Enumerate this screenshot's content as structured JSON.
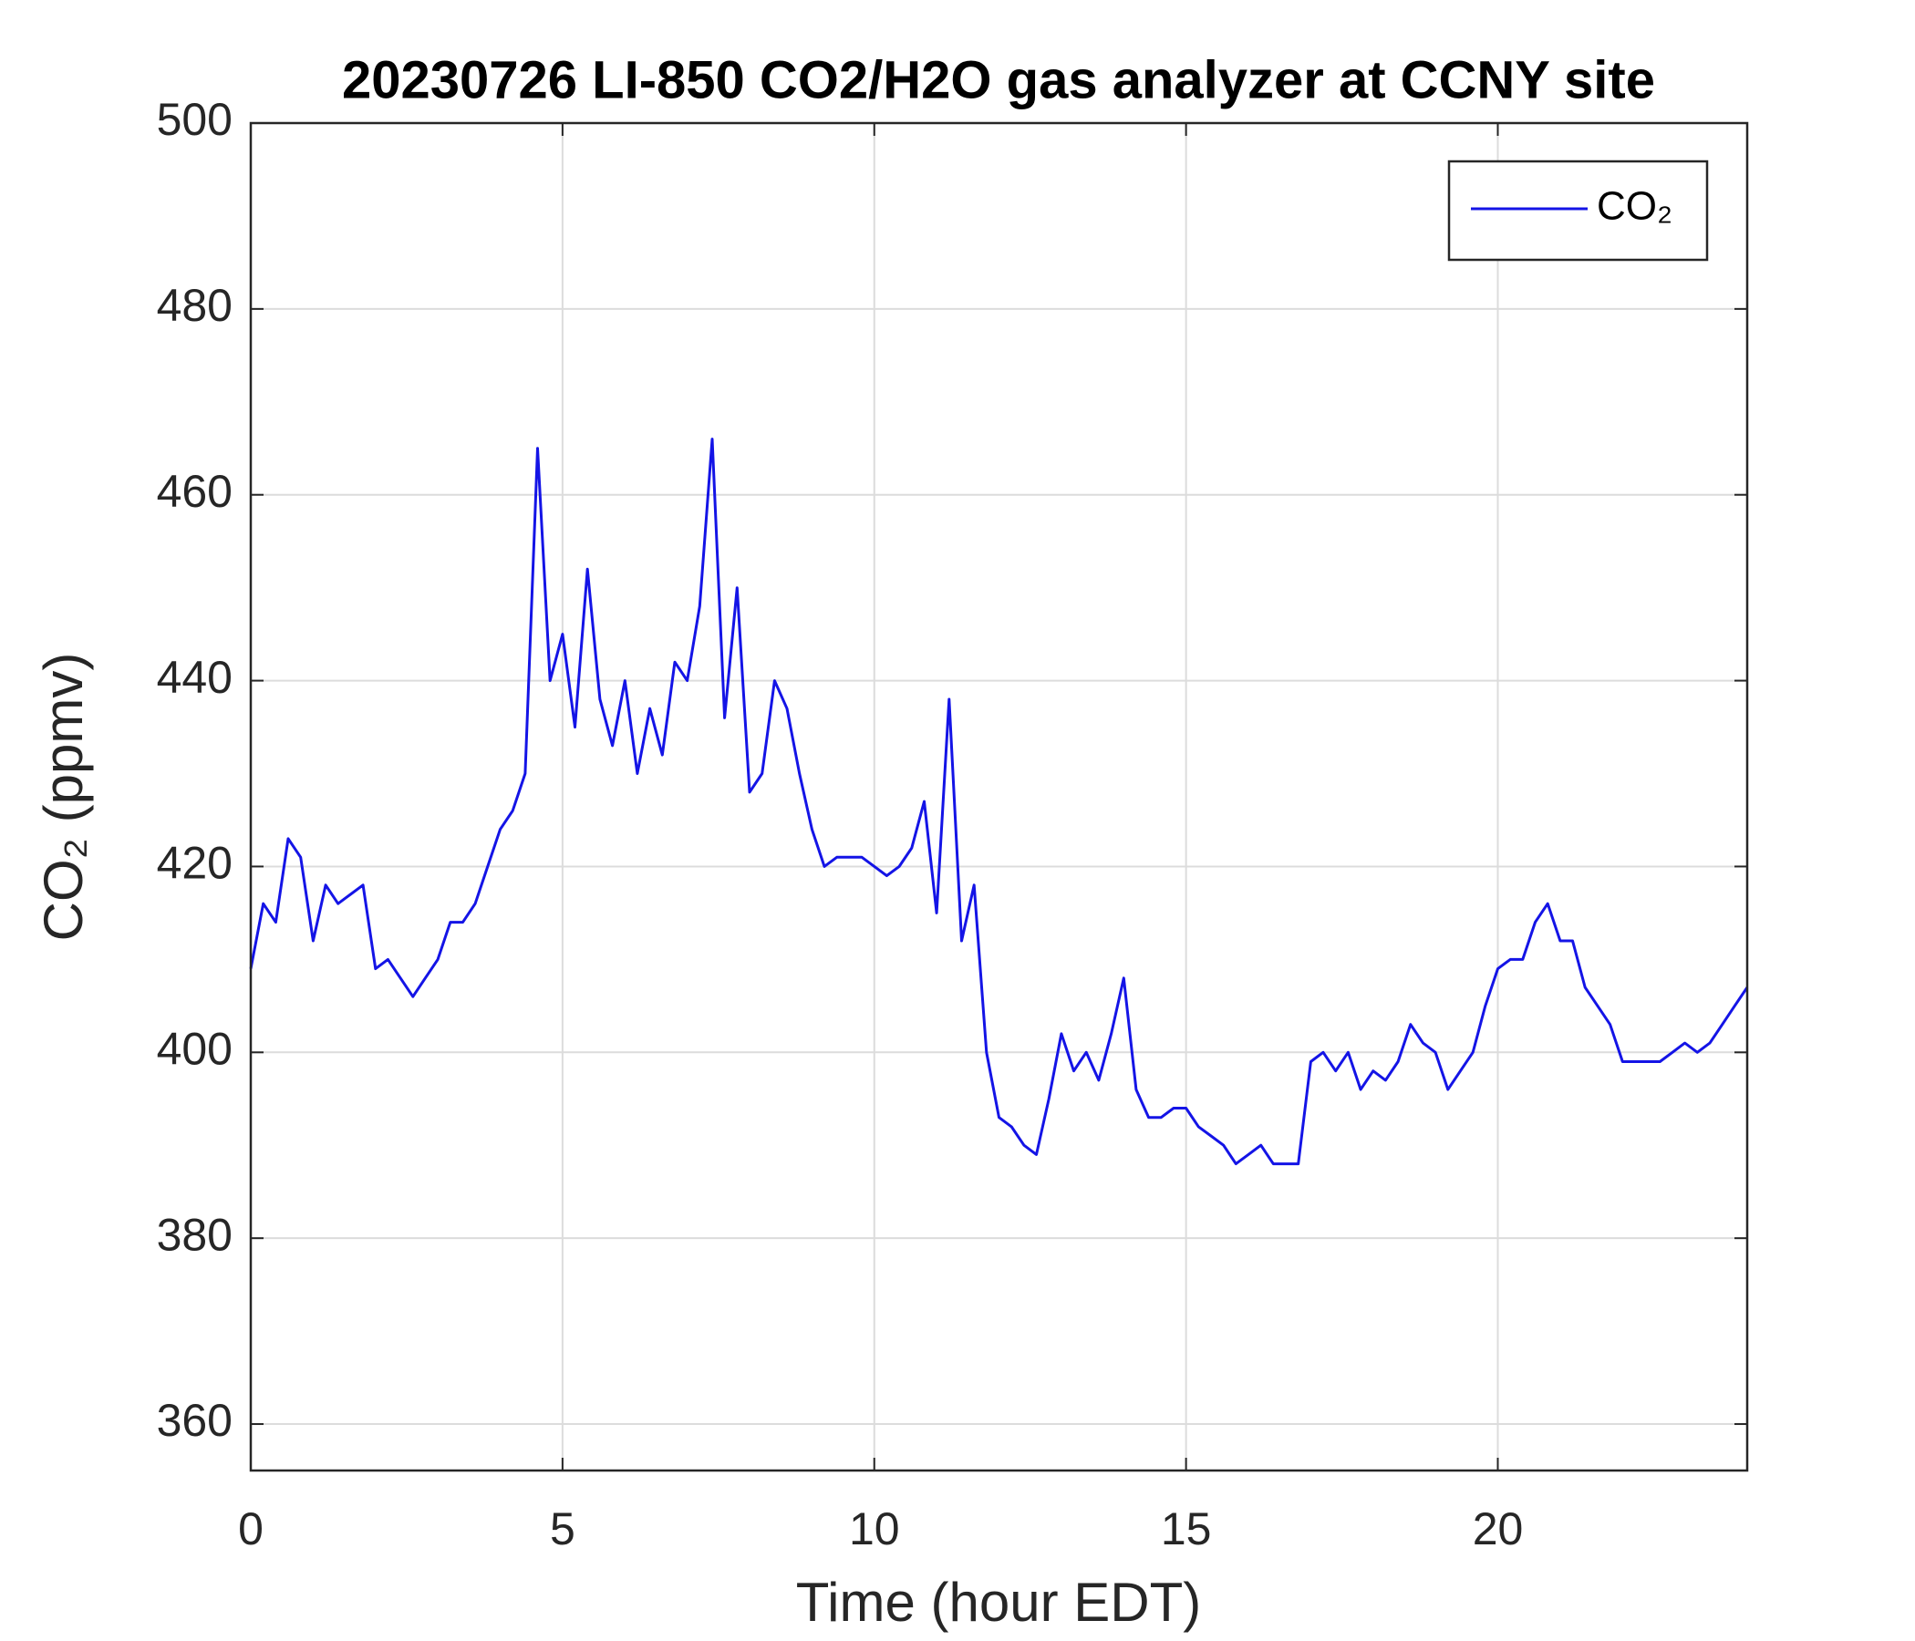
{
  "chart_data": {
    "type": "line",
    "title": "20230726 LI-850 CO2/H2O gas analyzer at CCNY site",
    "x_label": "Time (hour EDT)",
    "y_label": "CO₂ (ppmv)",
    "x": [
      0,
      0.2,
      0.4,
      0.6,
      0.8,
      1,
      1.2,
      1.4,
      1.6,
      1.8,
      2,
      2.2,
      2.4,
      2.6,
      2.8,
      3,
      3.2,
      3.4,
      3.6,
      3.8,
      4,
      4.2,
      4.4,
      4.6,
      4.8,
      5,
      5.2,
      5.4,
      5.6,
      5.8,
      6,
      6.2,
      6.4,
      6.6,
      6.8,
      7,
      7.2,
      7.4,
      7.6,
      7.8,
      8,
      8.2,
      8.4,
      8.6,
      8.8,
      9,
      9.2,
      9.4,
      9.6,
      9.8,
      10,
      10.2,
      10.4,
      10.6,
      10.8,
      11,
      11.2,
      11.4,
      11.6,
      11.8,
      12,
      12.2,
      12.4,
      12.6,
      12.8,
      13,
      13.2,
      13.4,
      13.6,
      13.8,
      14,
      14.2,
      14.4,
      14.6,
      14.8,
      15,
      15.2,
      15.4,
      15.6,
      15.8,
      16,
      16.2,
      16.4,
      16.6,
      16.8,
      17,
      17.2,
      17.4,
      17.6,
      17.8,
      18,
      18.2,
      18.4,
      18.6,
      18.8,
      19,
      19.2,
      19.4,
      19.6,
      19.8,
      20,
      20.2,
      20.4,
      20.6,
      20.8,
      21,
      21.2,
      21.4,
      21.6,
      21.8,
      22,
      22.2,
      22.4,
      22.6,
      22.8,
      23,
      23.2,
      23.4,
      23.6,
      23.8,
      24
    ],
    "series": [
      {
        "name": "CO₂",
        "color": "#1414e6",
        "values": [
          409,
          416,
          414,
          423,
          421,
          412,
          418,
          416,
          417,
          418,
          409,
          410,
          408,
          406,
          408,
          410,
          414,
          414,
          416,
          420,
          424,
          426,
          430,
          465,
          440,
          445,
          435,
          452,
          438,
          433,
          440,
          430,
          437,
          432,
          442,
          440,
          448,
          466,
          436,
          450,
          428,
          430,
          440,
          437,
          430,
          424,
          420,
          421,
          421,
          421,
          420,
          419,
          420,
          422,
          427,
          415,
          438,
          412,
          418,
          400,
          393,
          392,
          390,
          389,
          395,
          402,
          398,
          400,
          397,
          402,
          408,
          396,
          393,
          393,
          394,
          394,
          392,
          391,
          390,
          388,
          389,
          390,
          388,
          388,
          388,
          399,
          400,
          398,
          400,
          396,
          398,
          397,
          399,
          403,
          401,
          400,
          396,
          398,
          400,
          405,
          409,
          410,
          410,
          414,
          416,
          412,
          412,
          407,
          405,
          403,
          399,
          399,
          399,
          399,
          400,
          401,
          400,
          401,
          403,
          405,
          407
        ]
      }
    ],
    "xlim": [
      0,
      24
    ],
    "ylim": [
      355,
      500
    ],
    "xticks": [
      0,
      5,
      10,
      15,
      20
    ],
    "yticks": [
      360,
      380,
      400,
      420,
      440,
      460,
      480,
      500
    ],
    "grid": true,
    "legend": "upper right"
  }
}
